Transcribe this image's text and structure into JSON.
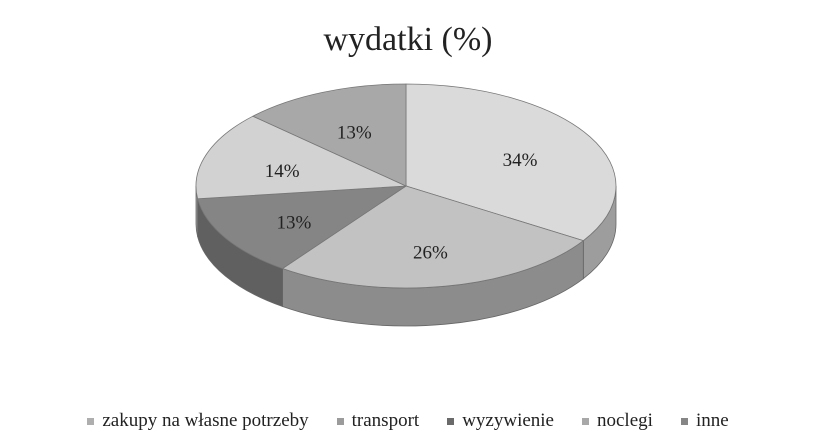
{
  "chart_data": {
    "type": "pie",
    "title": "wydatki (%)",
    "categories": [
      "zakupy na własne potrzeby",
      "transport",
      "wyzywienie",
      "noclegi",
      "inne"
    ],
    "values": [
      34,
      26,
      13,
      14,
      13
    ],
    "value_labels": [
      "34%",
      "26%",
      "13%",
      "14%",
      "13%"
    ],
    "colors": [
      "#dadada",
      "#c2c2c2",
      "#858585",
      "#d2d2d2",
      "#a8a8a8"
    ],
    "legend": "bottom"
  }
}
